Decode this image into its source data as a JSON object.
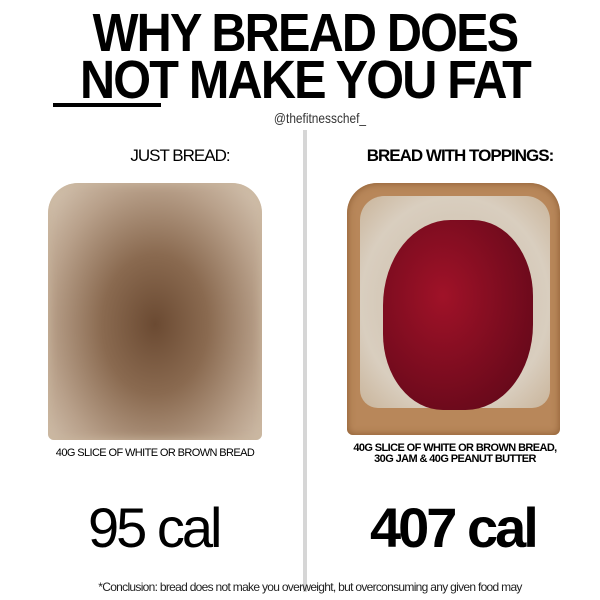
{
  "title": {
    "line1": "WHY BREAD DOES",
    "line2": "NOT MAKE YOU FAT"
  },
  "handle": "@thefitnesschef_",
  "left": {
    "heading": "JUST BREAD:",
    "caption": "40G SLICE OF WHITE OR BROWN BREAD",
    "calories": "95 cal"
  },
  "right": {
    "heading": "BREAD WITH TOPPINGS:",
    "caption_line1": "40G SLICE OF WHITE OR BROWN BREAD,",
    "caption_line2": "30G JAM & 40G PEANUT BUTTER",
    "calories": "407 cal"
  },
  "conclusion": "*Conclusion: bread does not make you overweight, but overconsuming any given food may",
  "colors": {
    "divider": "#d6d6d6",
    "jam": "#8a0e22",
    "toast": "#b8875a"
  }
}
